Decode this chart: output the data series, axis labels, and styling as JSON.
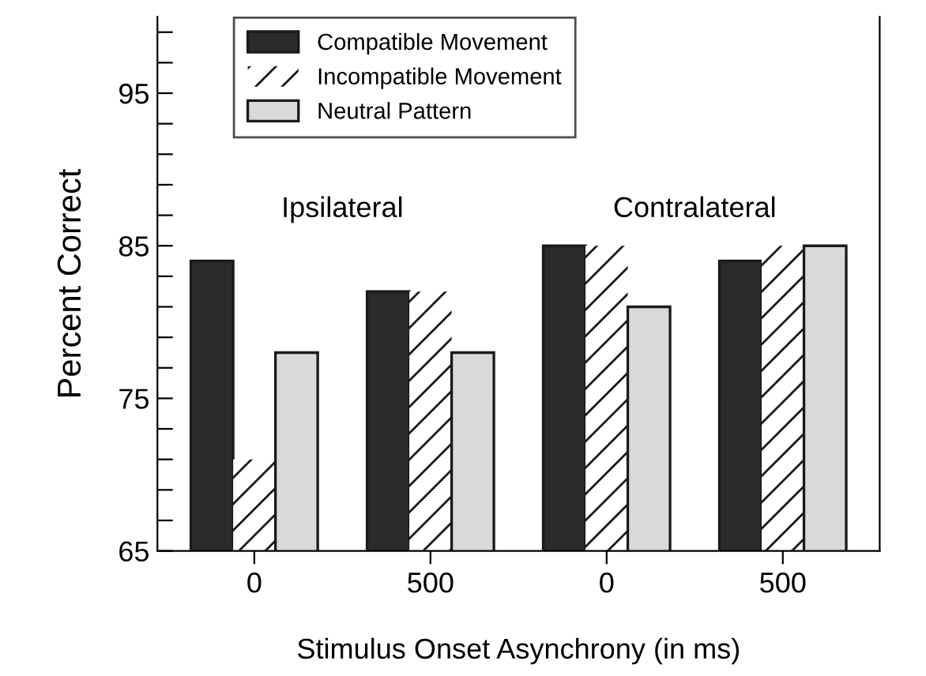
{
  "chart_data": {
    "type": "bar",
    "xlabel": "Stimulus Onset Asynchrony (in ms)",
    "ylabel": "Percent Correct",
    "categories": [
      "0",
      "500",
      "0",
      "500"
    ],
    "series": [
      {
        "name": "Compatible Movement",
        "color": "#2b2b2b",
        "values": [
          84,
          82,
          85,
          84
        ]
      },
      {
        "name": "Incompatible Movement",
        "color": "#ffffff",
        "values": [
          71,
          82,
          85,
          85
        ]
      },
      {
        "name": "Neutral Pattern",
        "color": "#d9d9d9",
        "values": [
          78,
          78,
          81,
          85
        ]
      }
    ],
    "ylim": [
      65,
      100
    ],
    "yticks": [
      65,
      {
        "value": 67,
        "label": null
      },
      {
        "value": 69,
        "label": null
      },
      {
        "value": 71,
        "label": null
      },
      {
        "value": 73,
        "label": null
      },
      75,
      {
        "value": 77,
        "label": null
      },
      {
        "value": 79,
        "label": null
      },
      {
        "value": 81,
        "label": null
      },
      {
        "value": 83,
        "label": null
      },
      85,
      {
        "value": 87,
        "label": null
      },
      {
        "value": 89,
        "label": null
      },
      {
        "value": 91,
        "label": null
      },
      {
        "value": 93,
        "label": null
      },
      95,
      {
        "value": 97,
        "label": null
      },
      {
        "value": 99,
        "label": null
      }
    ],
    "annotations": [
      "Ipsilateral",
      "Contralateral"
    ],
    "legend": "top left",
    "grid": false
  }
}
